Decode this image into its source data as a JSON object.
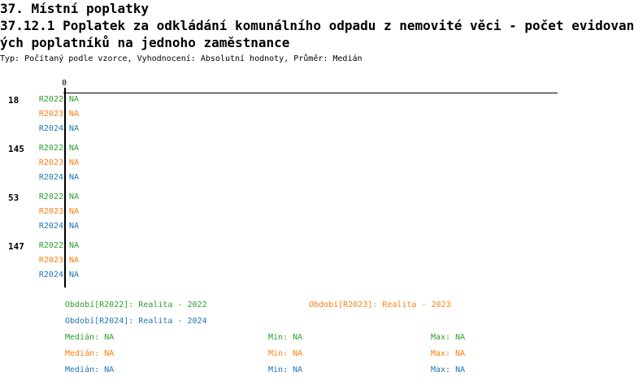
{
  "header": {
    "section": "37. Místní poplatky",
    "title_line1": "37.12.1 Poplatek za odkládání komunálního odpadu z nemovité věci - počet evidovan",
    "title_line2": "ých poplatníků na jednoho zaměstnance",
    "subtitle": "Typ: Počítaný podle vzorce, Vyhodnocení: Absolutní hodnoty, Průměr: Medián"
  },
  "chart_data": {
    "type": "bar",
    "orientation": "horizontal",
    "axis_tick": "0",
    "categories": [
      "18",
      "145",
      "53",
      "147"
    ],
    "series": [
      {
        "name": "R2022",
        "color": "#2ca02c",
        "values": [
          "NA",
          "NA",
          "NA",
          "NA"
        ]
      },
      {
        "name": "R2023",
        "color": "#ff7f0e",
        "values": [
          "NA",
          "NA",
          "NA",
          "NA"
        ]
      },
      {
        "name": "R2024",
        "color": "#1f77b4",
        "values": [
          "NA",
          "NA",
          "NA",
          "NA"
        ]
      }
    ]
  },
  "legend": {
    "periods": [
      "Období[R2022]: Realita - 2022",
      "Období[R2023]: Realita - 2023",
      "Období[R2024]: Realita - 2024"
    ],
    "stats": [
      {
        "median": "Medián: NA",
        "min": "Min: NA",
        "max": "Max: NA"
      },
      {
        "median": "Medián: NA",
        "min": "Min: NA",
        "max": "Max: NA"
      },
      {
        "median": "Medián: NA",
        "min": "Min: NA",
        "max": "Max: NA"
      }
    ]
  }
}
